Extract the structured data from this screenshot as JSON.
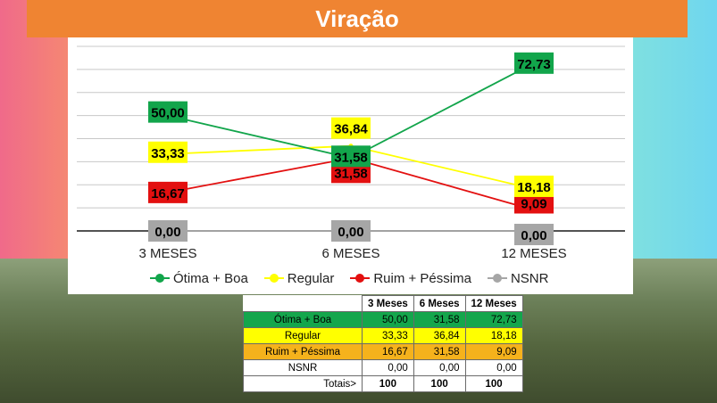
{
  "header": {
    "title": "Viração"
  },
  "colors": {
    "otima": "#12a54b",
    "regular": "#ffff00",
    "ruim": "#e31010",
    "nsnr": "#a6a6a6",
    "banner": "#ef8432",
    "otima_row": "#14a64c",
    "ruim_row": "#f5b21c"
  },
  "chart_data": {
    "type": "line",
    "categories": [
      "3 MESES",
      "6 MESES",
      "12 MESES"
    ],
    "series": [
      {
        "name": "Ótima + Boa",
        "values": [
          50.0,
          31.58,
          72.73
        ],
        "labels": [
          "50,00",
          "31,58",
          "72,73"
        ]
      },
      {
        "name": "Regular",
        "values": [
          33.33,
          36.84,
          18.18
        ],
        "labels": [
          "33,33",
          "36,84",
          "18,18"
        ]
      },
      {
        "name": "Ruim + Péssima",
        "values": [
          16.67,
          31.58,
          9.09
        ],
        "labels": [
          "16,67",
          "31,58",
          "9,09"
        ]
      },
      {
        "name": "NSNR",
        "values": [
          0.0,
          0.0,
          0.0
        ],
        "labels": [
          "0,00",
          "0,00",
          "0,00"
        ]
      }
    ],
    "ylim": [
      0,
      80
    ],
    "grid": true,
    "legend": "bottom"
  },
  "table": {
    "headers": [
      "3 Meses",
      "6 Meses",
      "12 Meses"
    ],
    "rows": [
      {
        "label": "Ótima + Boa",
        "values": [
          "50,00",
          "31,58",
          "72,73"
        ]
      },
      {
        "label": "Regular",
        "values": [
          "33,33",
          "36,84",
          "18,18"
        ]
      },
      {
        "label": "Ruim + Péssima",
        "values": [
          "16,67",
          "31,58",
          "9,09"
        ]
      },
      {
        "label": "NSNR",
        "values": [
          "0,00",
          "0,00",
          "0,00"
        ]
      }
    ],
    "totals_label": "Totais>",
    "totals": [
      "100",
      "100",
      "100"
    ]
  }
}
